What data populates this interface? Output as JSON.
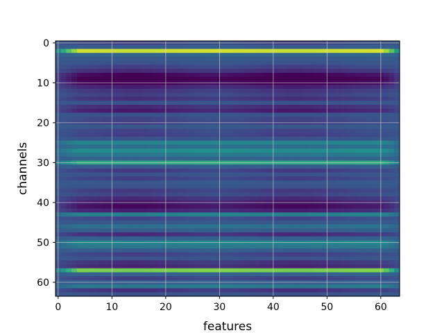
{
  "chart_data": {
    "type": "heatmap",
    "title": "",
    "xlabel": "features",
    "ylabel": "channels",
    "x_range": [
      -0.5,
      63.5
    ],
    "y_range": [
      -0.5,
      63.5
    ],
    "y_inverted": true,
    "x_ticks": [
      0,
      10,
      20,
      30,
      40,
      50,
      60
    ],
    "y_ticks": [
      0,
      10,
      20,
      30,
      40,
      50,
      60
    ],
    "x_tick_labels": [
      "0",
      "10",
      "20",
      "30",
      "40",
      "50",
      "60"
    ],
    "y_tick_labels": [
      "0",
      "10",
      "20",
      "30",
      "40",
      "50",
      "60"
    ],
    "grid": true,
    "colormap": "viridis",
    "value_range": [
      0,
      1
    ],
    "rows": 64,
    "columns": 64,
    "row_values": [
      0.32,
      0.38,
      0.96,
      0.42,
      0.36,
      0.34,
      0.3,
      0.22,
      0.08,
      0.03,
      0.06,
      0.18,
      0.26,
      0.3,
      0.24,
      0.34,
      0.22,
      0.16,
      0.34,
      0.32,
      0.3,
      0.36,
      0.32,
      0.3,
      0.34,
      0.58,
      0.46,
      0.62,
      0.52,
      0.4,
      0.72,
      0.38,
      0.28,
      0.34,
      0.3,
      0.36,
      0.34,
      0.28,
      0.32,
      0.22,
      0.14,
      0.1,
      0.18,
      0.56,
      0.32,
      0.36,
      0.48,
      0.38,
      0.22,
      0.4,
      0.58,
      0.52,
      0.38,
      0.3,
      0.34,
      0.24,
      0.2,
      0.86,
      0.4,
      0.3,
      0.38,
      0.52,
      0.24,
      0.34
    ],
    "column_profile": {
      "edge_columns": [
        0,
        1,
        2,
        3,
        61,
        62,
        63
      ],
      "edge_blend": [
        0.55,
        0.4,
        0.25,
        0.12,
        0.1,
        0.25,
        0.5
      ],
      "dip_centers": [
        14,
        44
      ],
      "dip_depth": 0.08
    }
  }
}
